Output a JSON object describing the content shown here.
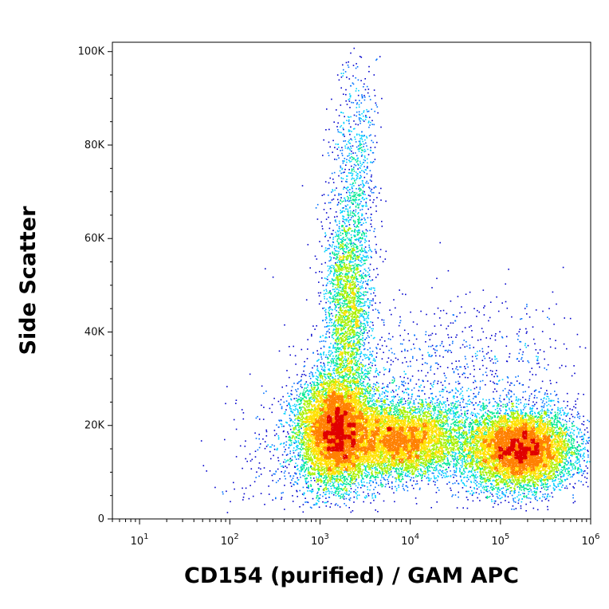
{
  "chart_data": {
    "type": "scatter",
    "xlabel": "CD154 (purified) / GAM APC",
    "ylabel": "Side Scatter",
    "x_scale": "log",
    "xlim": [
      5,
      1000000
    ],
    "ylim": [
      0,
      102000
    ],
    "x_ticks": [
      {
        "value": 10,
        "base": "10",
        "exp": "1"
      },
      {
        "value": 100,
        "base": "10",
        "exp": "2"
      },
      {
        "value": 1000,
        "base": "10",
        "exp": "3"
      },
      {
        "value": 10000,
        "base": "10",
        "exp": "4"
      },
      {
        "value": 100000,
        "base": "10",
        "exp": "5"
      },
      {
        "value": 1000000,
        "base": "10",
        "exp": "6"
      }
    ],
    "y_ticks": [
      {
        "value": 0,
        "label": "0"
      },
      {
        "value": 20000,
        "label": "20K"
      },
      {
        "value": 40000,
        "label": "40K"
      },
      {
        "value": 60000,
        "label": "60K"
      },
      {
        "value": 80000,
        "label": "80K"
      },
      {
        "value": 100000,
        "label": "100K"
      }
    ],
    "grid": false,
    "legend": "none",
    "color_scale": [
      "#0000cc",
      "#0070ff",
      "#00d0ff",
      "#00e890",
      "#a8f000",
      "#ffe000",
      "#ff8000",
      "#e00000"
    ],
    "populations": [
      {
        "center_x": 1500,
        "center_y": 19000,
        "sd_log_x": 0.22,
        "sd_y": 6000,
        "share": 0.3
      },
      {
        "center_x": 2000,
        "center_y": 45000,
        "sd_log_x": 0.13,
        "sd_y": 12000,
        "share": 0.1
      },
      {
        "center_x": 2500,
        "center_y": 75000,
        "sd_log_x": 0.12,
        "sd_y": 12000,
        "share": 0.025
      },
      {
        "center_x": 8000,
        "center_y": 17000,
        "sd_log_x": 0.35,
        "sd_y": 4000,
        "share": 0.22
      },
      {
        "center_x": 160000,
        "center_y": 15000,
        "sd_log_x": 0.3,
        "sd_y": 4200,
        "share": 0.3
      },
      {
        "center_x": 25000,
        "center_y": 30000,
        "sd_log_x": 0.75,
        "sd_y": 9000,
        "share": 0.035
      },
      {
        "center_x": 400,
        "center_y": 14000,
        "sd_log_x": 0.35,
        "sd_y": 7000,
        "share": 0.01
      }
    ]
  }
}
